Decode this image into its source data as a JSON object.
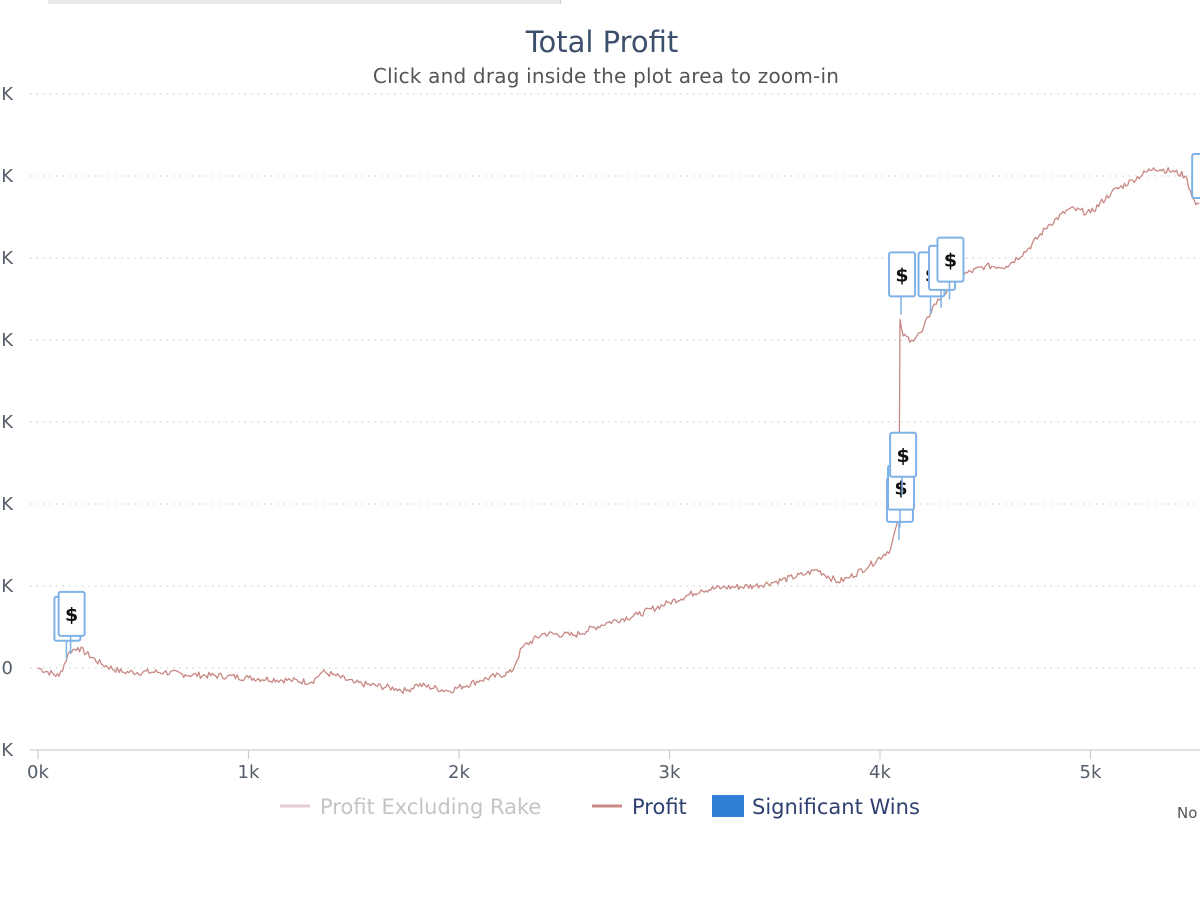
{
  "chart_data": {
    "type": "line",
    "title": "Total Profit",
    "subtitle": "Click and drag inside the plot area to zoom-in",
    "yticks": [
      "K",
      "K",
      "K",
      "K",
      "K",
      "K",
      "K",
      "0",
      "K"
    ],
    "xticks": [
      "0k",
      "1k",
      "2k",
      "3k",
      "4k",
      "5k"
    ],
    "xlim": [
      0,
      5550
    ],
    "ylim": [
      -1,
      7
    ],
    "grid": true,
    "legend_position": "bottom",
    "legend": [
      {
        "name": "Profit Excluding Rake",
        "color": "#e5cdd0",
        "text_color": "#c4c4c4",
        "marker": "line"
      },
      {
        "name": "Profit",
        "color": "#c88884",
        "text_color": "#2f4170",
        "marker": "line"
      },
      {
        "name": "Significant Wins",
        "color": "#2f80d6",
        "text_color": "#2f4170",
        "marker": "square"
      }
    ],
    "series": [
      {
        "name": "Profit",
        "color": "#c88884",
        "points": [
          [
            0,
            0
          ],
          [
            100,
            -0.1
          ],
          [
            150,
            0.2
          ],
          [
            190,
            0.25
          ],
          [
            300,
            0.05
          ],
          [
            400,
            -0.05
          ],
          [
            600,
            -0.05
          ],
          [
            700,
            -0.08
          ],
          [
            900,
            -0.1
          ],
          [
            1000,
            -0.12
          ],
          [
            1200,
            -0.15
          ],
          [
            1300,
            -0.17
          ],
          [
            1350,
            -0.05
          ],
          [
            1400,
            -0.08
          ],
          [
            1500,
            -0.18
          ],
          [
            1700,
            -0.25
          ],
          [
            1750,
            -0.28
          ],
          [
            1800,
            -0.2
          ],
          [
            1950,
            -0.28
          ],
          [
            2100,
            -0.15
          ],
          [
            2250,
            -0.05
          ],
          [
            2300,
            0.25
          ],
          [
            2400,
            0.42
          ],
          [
            2550,
            0.4
          ],
          [
            2700,
            0.55
          ],
          [
            2850,
            0.65
          ],
          [
            3000,
            0.8
          ],
          [
            3150,
            0.95
          ],
          [
            3250,
            0.98
          ],
          [
            3400,
            1.0
          ],
          [
            3500,
            1.05
          ],
          [
            3650,
            1.15
          ],
          [
            3700,
            1.2
          ],
          [
            3800,
            1.05
          ],
          [
            3850,
            1.1
          ],
          [
            3950,
            1.25
          ],
          [
            4050,
            1.45
          ],
          [
            4080,
            1.75
          ],
          [
            4090,
            1.9
          ],
          [
            4095,
            4.25
          ],
          [
            4110,
            4.05
          ],
          [
            4150,
            4.0
          ],
          [
            4200,
            4.1
          ],
          [
            4250,
            4.4
          ],
          [
            4300,
            4.55
          ],
          [
            4400,
            4.8
          ],
          [
            4500,
            4.9
          ],
          [
            4600,
            4.9
          ],
          [
            4700,
            5.1
          ],
          [
            4800,
            5.4
          ],
          [
            4900,
            5.6
          ],
          [
            5000,
            5.55
          ],
          [
            5100,
            5.8
          ],
          [
            5200,
            5.95
          ],
          [
            5300,
            6.1
          ],
          [
            5400,
            6.05
          ],
          [
            5450,
            6.0
          ],
          [
            5500,
            5.65
          ],
          [
            5550,
            5.7
          ]
        ]
      }
    ],
    "significant_wins": [
      {
        "x": 135,
        "y": 0.6,
        "label": "$"
      },
      {
        "x": 155,
        "y": 0.66,
        "label": "$"
      },
      {
        "x": 4090,
        "y": 2.05,
        "label": "$"
      },
      {
        "x": 4095,
        "y": 2.2,
        "label": "$"
      },
      {
        "x": 4105,
        "y": 2.6,
        "label": "$"
      },
      {
        "x": 4100,
        "y": 4.8,
        "label": "$"
      },
      {
        "x": 4240,
        "y": 4.8,
        "label": "$"
      },
      {
        "x": 4290,
        "y": 4.88,
        "label": "$"
      },
      {
        "x": 4330,
        "y": 4.98,
        "label": "$"
      },
      {
        "x": 5540,
        "y": 6.0,
        "label": "$"
      }
    ],
    "corner_note": "No"
  }
}
